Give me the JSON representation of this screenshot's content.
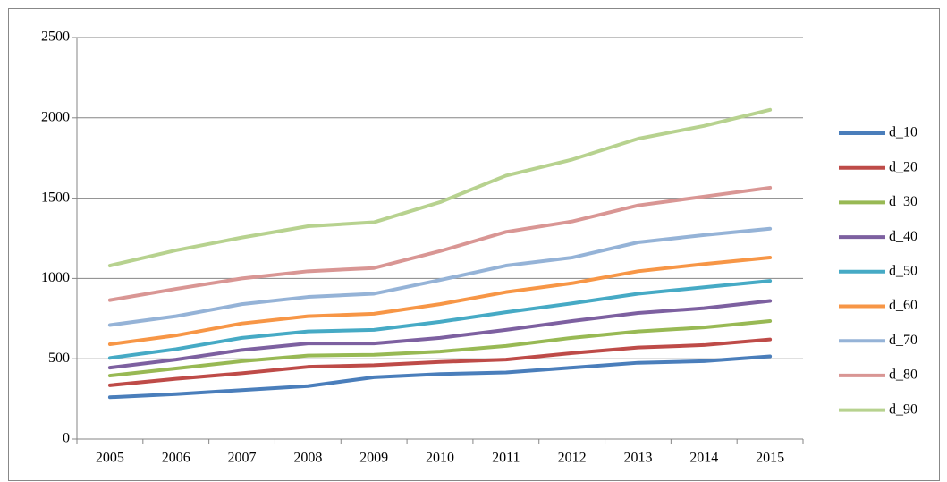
{
  "chart_data": {
    "type": "line",
    "categories": [
      "2005",
      "2006",
      "2007",
      "2008",
      "2009",
      "2010",
      "2011",
      "2012",
      "2013",
      "2014",
      "2015"
    ],
    "series": [
      {
        "name": "d_10",
        "color": "#4a7ebb",
        "values": [
          260,
          280,
          305,
          330,
          385,
          405,
          415,
          445,
          475,
          485,
          515
        ]
      },
      {
        "name": "d_20",
        "color": "#be4b48",
        "values": [
          335,
          375,
          410,
          450,
          460,
          480,
          495,
          535,
          570,
          585,
          620
        ]
      },
      {
        "name": "d_30",
        "color": "#98b954",
        "values": [
          395,
          440,
          485,
          520,
          525,
          545,
          580,
          630,
          670,
          695,
          735
        ]
      },
      {
        "name": "d_40",
        "color": "#7d60a0",
        "values": [
          445,
          495,
          555,
          595,
          595,
          630,
          680,
          735,
          785,
          815,
          860
        ]
      },
      {
        "name": "d_50",
        "color": "#46aac5",
        "values": [
          505,
          560,
          630,
          670,
          680,
          730,
          790,
          845,
          905,
          945,
          985
        ]
      },
      {
        "name": "d_60",
        "color": "#f79646",
        "values": [
          590,
          645,
          720,
          765,
          780,
          840,
          915,
          970,
          1045,
          1090,
          1130
        ]
      },
      {
        "name": "d_70",
        "color": "#95b3d7",
        "values": [
          710,
          765,
          840,
          885,
          905,
          990,
          1080,
          1130,
          1225,
          1270,
          1310
        ]
      },
      {
        "name": "d_80",
        "color": "#d99694",
        "values": [
          865,
          935,
          1000,
          1045,
          1065,
          1170,
          1290,
          1355,
          1455,
          1510,
          1565
        ]
      },
      {
        "name": "d_90",
        "color": "#b7d28f",
        "values": [
          1080,
          1175,
          1255,
          1325,
          1350,
          1475,
          1640,
          1740,
          1870,
          1950,
          2050
        ]
      }
    ],
    "ylim": [
      0,
      2500
    ],
    "yticks": [
      0,
      500,
      1000,
      1500,
      2000,
      2500
    ],
    "grid": true,
    "legend": "right"
  }
}
